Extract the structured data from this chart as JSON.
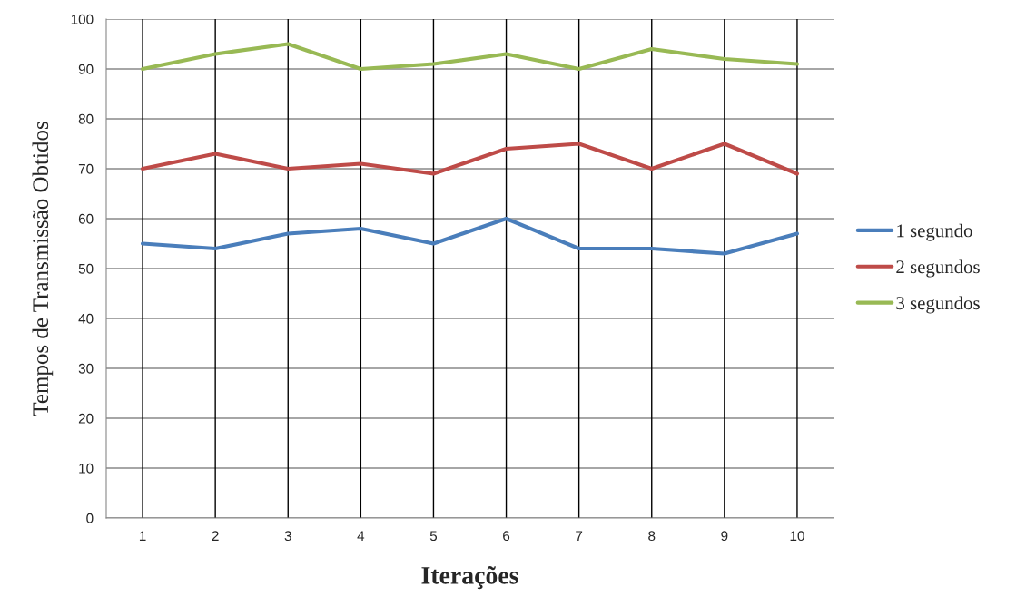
{
  "chart_data": {
    "type": "line",
    "xlabel": "Iterações",
    "ylabel": "Tempos de Transmissão Obtidos",
    "categories": [
      "1",
      "2",
      "3",
      "4",
      "5",
      "6",
      "7",
      "8",
      "9",
      "10"
    ],
    "series": [
      {
        "name": "1 segundo",
        "color": "#4a7ebb",
        "values": [
          55,
          54,
          57,
          58,
          55,
          60,
          54,
          54,
          53,
          57
        ]
      },
      {
        "name": "2 segundos",
        "color": "#be4b48",
        "values": [
          70,
          73,
          70,
          71,
          69,
          74,
          75,
          70,
          75,
          69
        ]
      },
      {
        "name": "3 segundos",
        "color": "#98b954",
        "values": [
          90,
          93,
          95,
          90,
          91,
          93,
          90,
          94,
          92,
          91
        ]
      }
    ],
    "ylim": [
      0,
      100
    ],
    "yticks": [
      0,
      10,
      20,
      30,
      40,
      50,
      60,
      70,
      80,
      90,
      100
    ],
    "grid": true,
    "legend": "right",
    "marker": "none",
    "line_style": "solid"
  }
}
